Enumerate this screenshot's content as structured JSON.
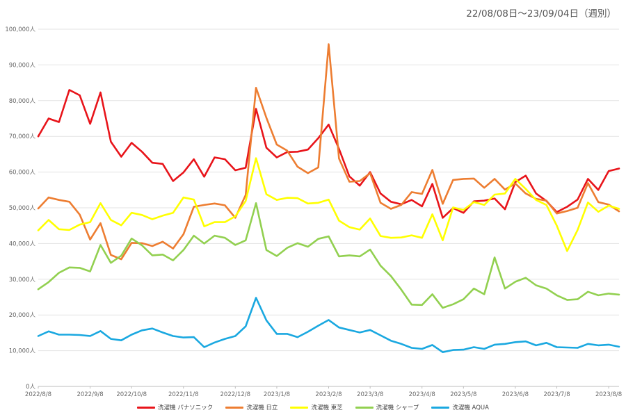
{
  "date_range_label": "22/08/08日～23/09/04日（週別）",
  "chart_data": {
    "type": "line",
    "ylim": [
      0,
      100000
    ],
    "y_ticks": [
      {
        "value": 0,
        "label": "0人"
      },
      {
        "value": 10000,
        "label": "10,000人"
      },
      {
        "value": 20000,
        "label": "20,000人"
      },
      {
        "value": 30000,
        "label": "30,000人"
      },
      {
        "value": 40000,
        "label": "40,000人"
      },
      {
        "value": 50000,
        "label": "50,000人"
      },
      {
        "value": 60000,
        "label": "60,000人"
      },
      {
        "value": 70000,
        "label": "70,000人"
      },
      {
        "value": 80000,
        "label": "80,000人"
      },
      {
        "value": 90000,
        "label": "90,000人"
      },
      {
        "value": 100000,
        "label": "100,000人"
      }
    ],
    "x": [
      "2022-08-08",
      "2022-08-15",
      "2022-08-22",
      "2022-08-29",
      "2022-09-05",
      "2022-09-12",
      "2022-09-19",
      "2022-09-26",
      "2022-10-03",
      "2022-10-10",
      "2022-10-17",
      "2022-10-24",
      "2022-10-31",
      "2022-11-07",
      "2022-11-14",
      "2022-11-21",
      "2022-11-28",
      "2022-12-05",
      "2022-12-12",
      "2022-12-19",
      "2022-12-26",
      "2023-01-02",
      "2023-01-09",
      "2023-01-16",
      "2023-01-23",
      "2023-01-30",
      "2023-02-06",
      "2023-02-13",
      "2023-02-20",
      "2023-02-27",
      "2023-03-06",
      "2023-03-13",
      "2023-03-20",
      "2023-03-27",
      "2023-04-03",
      "2023-04-10",
      "2023-04-17",
      "2023-04-24",
      "2023-05-01",
      "2023-05-08",
      "2023-05-15",
      "2023-05-22",
      "2023-05-29",
      "2023-06-05",
      "2023-06-12",
      "2023-06-19",
      "2023-06-26",
      "2023-07-03",
      "2023-07-10",
      "2023-07-17",
      "2023-07-24",
      "2023-07-31",
      "2023-08-07",
      "2023-08-14",
      "2023-08-21",
      "2023-08-28",
      "2023-09-04"
    ],
    "x_ticks": [
      {
        "index": 0,
        "label": "2022/8/8"
      },
      {
        "index": 5,
        "label": "2022/9/8"
      },
      {
        "index": 9,
        "label": "2022/10/8"
      },
      {
        "index": 14,
        "label": "2022/11/8"
      },
      {
        "index": 19,
        "label": "2022/12/8"
      },
      {
        "index": 23,
        "label": "2023/1/8"
      },
      {
        "index": 28,
        "label": "2023/2/8"
      },
      {
        "index": 32,
        "label": "2023/3/8"
      },
      {
        "index": 37,
        "label": "2023/4/8"
      },
      {
        "index": 41,
        "label": "2023/5/8"
      },
      {
        "index": 46,
        "label": "2023/6/8"
      },
      {
        "index": 50,
        "label": "2023/7/8"
      },
      {
        "index": 55,
        "label": "2023/8/8"
      }
    ],
    "grid": true,
    "legend_position": "bottom",
    "series": [
      {
        "name": "洗濯機 パナソニック",
        "color": "#e8141a",
        "values": [
          70000,
          75000,
          74000,
          83000,
          81500,
          73500,
          82300,
          68500,
          64300,
          68200,
          65700,
          62600,
          62300,
          57500,
          59900,
          63600,
          58700,
          64100,
          63600,
          60500,
          61200,
          77700,
          66800,
          64100,
          65600,
          65700,
          66300,
          69500,
          73300,
          66500,
          58800,
          56200,
          60000,
          54000,
          51700,
          51000,
          52200,
          50400,
          56700,
          47200,
          49900,
          48600,
          51800,
          52000,
          52600,
          49600,
          57200,
          59000,
          54000,
          51900,
          48800,
          50300,
          52300,
          58100,
          55000,
          60300,
          61000
        ]
      },
      {
        "name": "洗濯機 日立",
        "color": "#ed7d31",
        "values": [
          49800,
          52900,
          52200,
          51700,
          48100,
          41100,
          45700,
          36800,
          35600,
          40200,
          40100,
          39300,
          40500,
          38600,
          42600,
          50300,
          50800,
          51200,
          50700,
          47200,
          53600,
          83600,
          75200,
          67700,
          66000,
          61500,
          59700,
          61300,
          95800,
          63800,
          57300,
          57500,
          59700,
          51400,
          49700,
          50800,
          54400,
          53900,
          60600,
          51100,
          57800,
          58100,
          58200,
          55600,
          58100,
          55100,
          56800,
          54000,
          52500,
          52000,
          48400,
          49100,
          50000,
          56900,
          51600,
          50900,
          49000
        ]
      },
      {
        "name": "洗濯機 東芝",
        "color": "#ffff00",
        "values": [
          43700,
          46600,
          44000,
          43800,
          45300,
          46000,
          51300,
          46600,
          45100,
          48600,
          48000,
          46800,
          47800,
          48600,
          52900,
          52300,
          44800,
          46000,
          46000,
          47600,
          51900,
          63900,
          53800,
          52200,
          52800,
          52700,
          51200,
          51400,
          52300,
          46400,
          44600,
          43900,
          47000,
          42100,
          41600,
          41700,
          42300,
          41600,
          48200,
          40900,
          50100,
          49400,
          51600,
          50800,
          53700,
          54000,
          58100,
          55300,
          52200,
          50800,
          45000,
          37900,
          43800,
          51500,
          48900,
          50600,
          49700
        ]
      },
      {
        "name": "洗濯機 シャープ",
        "color": "#92d050",
        "values": [
          27200,
          29200,
          31800,
          33300,
          33200,
          32200,
          39600,
          34600,
          36600,
          41400,
          39500,
          36700,
          36900,
          35300,
          38200,
          42200,
          40000,
          42200,
          41600,
          39600,
          40900,
          51300,
          38200,
          36500,
          38800,
          40100,
          39100,
          41300,
          42000,
          36400,
          36700,
          36400,
          38300,
          33800,
          30900,
          27100,
          22900,
          22800,
          25800,
          22000,
          23000,
          24400,
          27400,
          25800,
          36100,
          27400,
          29300,
          30400,
          28300,
          27400,
          25500,
          24200,
          24400,
          26500,
          25500,
          26000,
          25700
        ]
      },
      {
        "name": "洗濯機 AQUA",
        "color": "#1aa8e0",
        "values": [
          14100,
          15400,
          14500,
          14500,
          14400,
          14100,
          15500,
          13300,
          12900,
          14500,
          15700,
          16200,
          15100,
          14100,
          13700,
          13800,
          11000,
          12300,
          13300,
          14100,
          16800,
          24800,
          18500,
          14700,
          14700,
          13800,
          15300,
          17000,
          18600,
          16500,
          15800,
          15100,
          15800,
          14300,
          12800,
          11900,
          10800,
          10500,
          11600,
          9600,
          10200,
          10300,
          11000,
          10500,
          11700,
          11900,
          12400,
          12600,
          11500,
          12200,
          11000,
          10900,
          10800,
          11900,
          11500,
          11700,
          11100
        ]
      }
    ]
  }
}
